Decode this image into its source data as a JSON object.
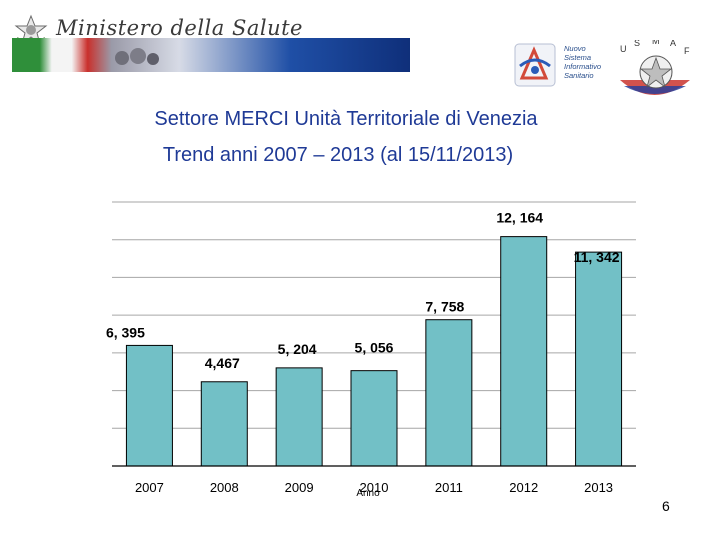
{
  "header": {
    "ministry_name": "Ministero della Salute",
    "logo_icons": [
      "italian-republic-emblem-icon",
      "nsis-logo-icon",
      "usmaf-logo-icon"
    ],
    "nsis_logo_text": [
      "Nuovo",
      "Sistema",
      "Informativo",
      "Sanitario"
    ],
    "usmaf_letters": [
      "U",
      "S",
      "M",
      "A",
      "F"
    ]
  },
  "title": {
    "line1": "Settore MERCI Unità Territoriale di Venezia",
    "line2": "Trend  anni 2007 – 2013 (al 15/11/2013)"
  },
  "chart_data": {
    "type": "bar",
    "categories": [
      "2007",
      "2008",
      "2009",
      "2010",
      "2011",
      "2012",
      "2013"
    ],
    "values": [
      6395,
      4467,
      5204,
      5056,
      7758,
      12164,
      11342
    ],
    "data_labels": [
      "6, 395",
      "4,467",
      "5, 204",
      "5, 056",
      "7, 758",
      "12, 164",
      "11, 342"
    ],
    "xlabel": "Anno",
    "ylabel": "",
    "ylim": [
      0,
      14000
    ],
    "grid": true,
    "legend": "none",
    "bar_color": "#72c0c6"
  },
  "footer": {
    "page_number": "6"
  }
}
